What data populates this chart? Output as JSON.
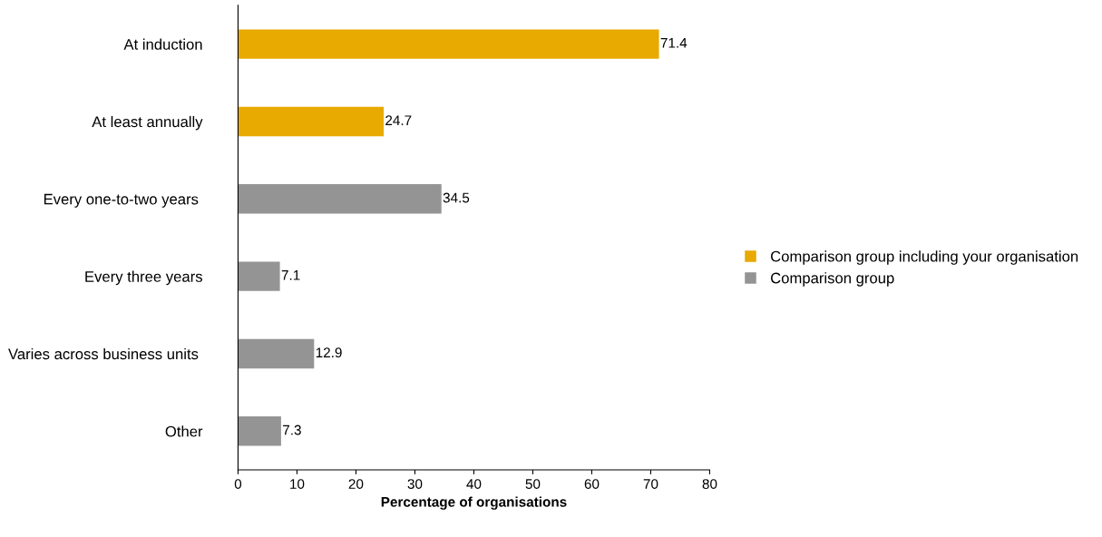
{
  "chart_data": {
    "type": "bar",
    "orientation": "horizontal",
    "xlabel": "Percentage of organisations",
    "categories": [
      "At induction",
      "At least annually",
      "Every one-to-two years ",
      "Every three years",
      "Varies across business units ",
      "Other"
    ],
    "series": [
      {
        "name": "Comparison group including your organisation",
        "color": "#e8a900",
        "values": [
          71.4,
          24.7,
          null,
          null,
          null,
          null
        ]
      },
      {
        "name": "Comparison group",
        "color": "#949494",
        "values": [
          null,
          null,
          34.5,
          7.1,
          12.9,
          7.3
        ]
      }
    ],
    "xlim": [
      0,
      80
    ],
    "xticks": [
      0,
      10,
      20,
      30,
      40,
      50,
      60,
      70,
      80
    ],
    "data_labels": true,
    "grid": false,
    "legend": "right"
  }
}
